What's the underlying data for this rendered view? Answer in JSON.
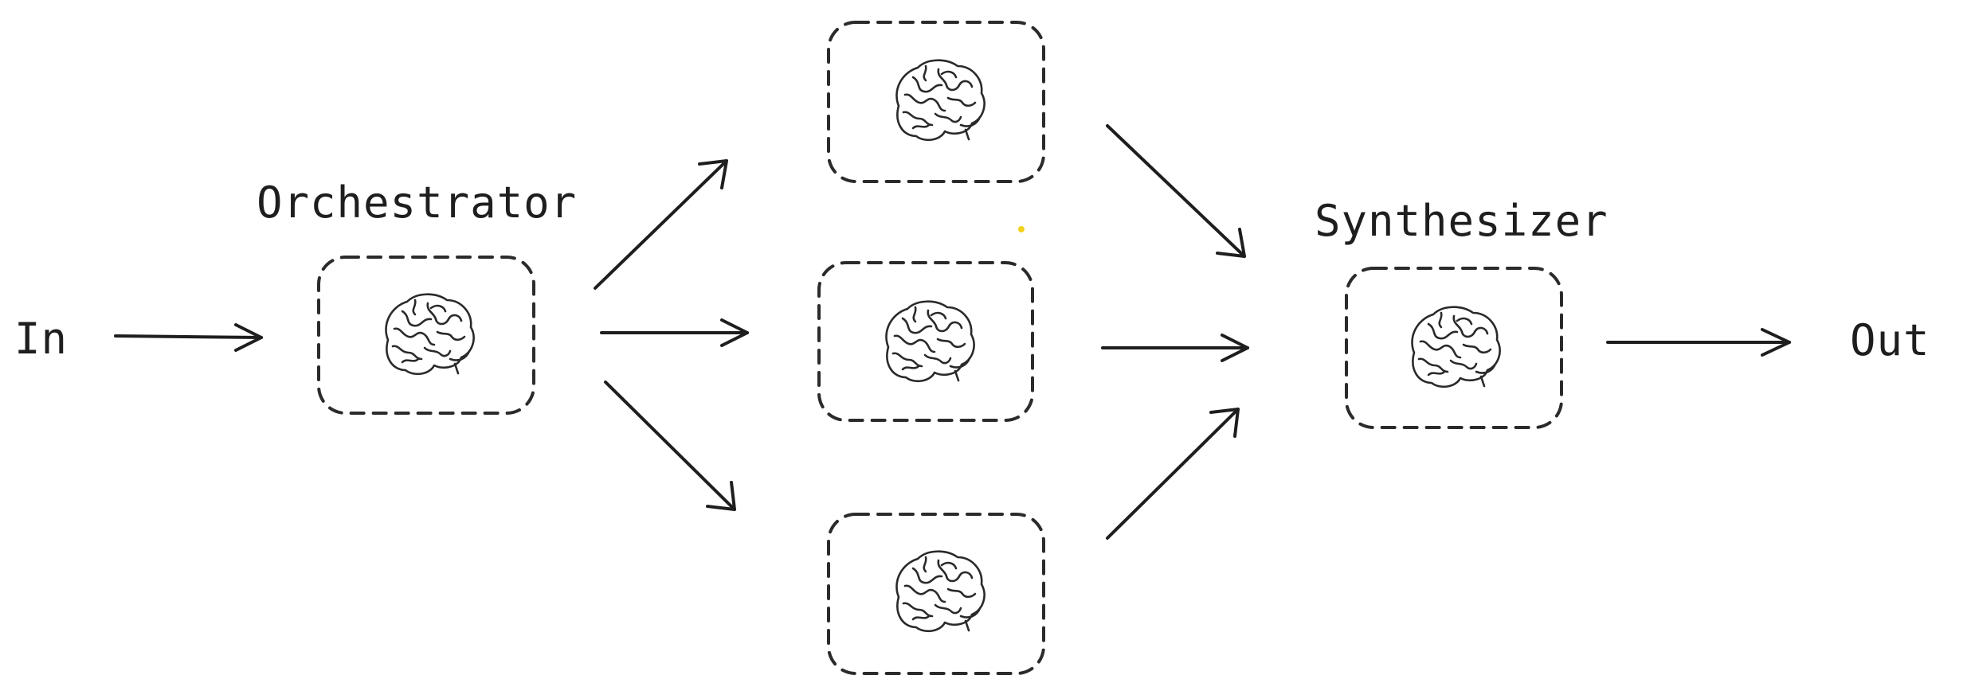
{
  "diagram": {
    "input_label": "In",
    "output_label": "Out",
    "orchestrator_label": "Orchestrator",
    "synthesizer_label": "Synthesizer"
  },
  "icons": {
    "node_icon": "brain-icon"
  },
  "colors": {
    "stroke": "#1e1e1e",
    "background": "#ffffff",
    "stray_dot": "#f2d21b"
  }
}
